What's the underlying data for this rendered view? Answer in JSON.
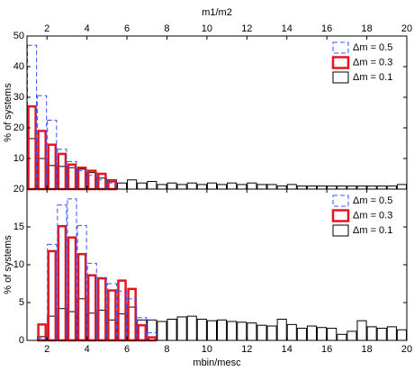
{
  "chart_data": [
    {
      "type": "histogram",
      "xlabel": "m1/m2",
      "xaxis_side": "top",
      "ylabel": "% of systems",
      "xlim": [
        1,
        20
      ],
      "xticks": [
        2,
        4,
        6,
        8,
        10,
        12,
        14,
        16,
        18,
        20
      ],
      "ylim": [
        0,
        50
      ],
      "yticks": [
        10,
        20,
        30,
        40,
        50
      ],
      "legend": "upper right",
      "bins": [
        1,
        1.5,
        2,
        2.5,
        3,
        3.5,
        4,
        4.5,
        5,
        5.5,
        6,
        6.5,
        7,
        7.5,
        8,
        8.5,
        9,
        9.5,
        10,
        10.5,
        11,
        11.5,
        12,
        12.5,
        13,
        13.5,
        14,
        14.5,
        15,
        15.5,
        16,
        16.5,
        17,
        17.5,
        18,
        18.5,
        19,
        19.5,
        20
      ],
      "series": [
        {
          "name": "Δm = 0.5",
          "color": "#3355ff",
          "style": "dashed",
          "values": [
            47,
            30.5,
            22.5,
            13,
            9,
            6,
            4.5,
            3,
            2,
            null,
            null,
            null,
            null,
            null,
            null,
            null,
            null,
            null,
            null,
            null,
            null,
            null,
            null,
            null,
            null,
            null,
            null,
            null,
            null,
            null,
            null,
            null,
            null,
            null,
            null,
            null,
            null,
            null
          ]
        },
        {
          "name": "Δm = 0.3",
          "color": "#e8141b",
          "style": "thick",
          "values": [
            27,
            19,
            14.5,
            11.5,
            8,
            7,
            6,
            5,
            2.5,
            null,
            null,
            null,
            null,
            null,
            null,
            null,
            null,
            null,
            null,
            null,
            null,
            null,
            null,
            null,
            null,
            null,
            null,
            null,
            null,
            null,
            null,
            null,
            null,
            null,
            null,
            null,
            null,
            null
          ]
        },
        {
          "name": "Δm = 0.1",
          "color": "#000000",
          "style": "solid",
          "values": [
            16.5,
            10,
            7.7,
            7.4,
            7,
            6.5,
            5.4,
            3.6,
            3,
            2,
            3,
            2,
            2.5,
            1.5,
            2,
            1.5,
            2,
            1.5,
            2,
            1.5,
            2,
            1.5,
            2,
            1.5,
            1.5,
            1,
            1.5,
            1,
            1,
            1,
            1,
            1,
            1,
            1,
            1,
            1,
            1,
            1.5
          ]
        }
      ]
    },
    {
      "type": "histogram",
      "xlabel": "mbin/mesc",
      "xaxis_side": "bottom",
      "ylabel": "% of systems",
      "xlim": [
        1,
        20
      ],
      "xticks": [
        2,
        4,
        6,
        8,
        10,
        12,
        14,
        16,
        18,
        20
      ],
      "ylim": [
        0,
        20
      ],
      "yticks": [
        0,
        5,
        10,
        15,
        20
      ],
      "legend": "upper right",
      "bins": [
        1,
        1.5,
        2,
        2.5,
        3,
        3.5,
        4,
        4.5,
        5,
        5.5,
        6,
        6.5,
        7,
        7.5,
        8,
        8.5,
        9,
        9.5,
        10,
        10.5,
        11,
        11.5,
        12,
        12.5,
        13,
        13.5,
        14,
        14.5,
        15,
        15.5,
        16,
        16.5,
        17,
        17.5,
        18,
        18.5,
        19,
        19.5,
        20
      ],
      "series": [
        {
          "name": "Δm = 0.5",
          "color": "#3355ff",
          "style": "dashed",
          "values": [
            null,
            0.3,
            12.7,
            17.9,
            18.7,
            15.2,
            10.2,
            8.3,
            7.5,
            6.5,
            5.5,
            3,
            1,
            null,
            null,
            null,
            null,
            null,
            null,
            null,
            null,
            null,
            null,
            null,
            null,
            null,
            null,
            null,
            null,
            null,
            null,
            null,
            null,
            null,
            null,
            null,
            null,
            null
          ]
        },
        {
          "name": "Δm = 0.3",
          "color": "#e8141b",
          "style": "thick",
          "values": [
            null,
            2.1,
            11.8,
            15.1,
            13.6,
            11.4,
            8.6,
            8.2,
            6.6,
            7.9,
            6.8,
            2,
            0.4,
            null,
            null,
            null,
            null,
            null,
            null,
            null,
            null,
            null,
            null,
            null,
            null,
            null,
            null,
            null,
            null,
            null,
            null,
            null,
            null,
            null,
            null,
            null,
            null,
            null
          ]
        },
        {
          "name": "Δm = 0.1",
          "color": "#000000",
          "style": "solid",
          "values": [
            0,
            0.5,
            3.2,
            4.2,
            3.8,
            5.5,
            3.6,
            4,
            2.7,
            3.5,
            4.4,
            2.7,
            2.7,
            2.5,
            2.8,
            3.1,
            3.2,
            2.8,
            2.6,
            2.7,
            2.5,
            2.4,
            2.3,
            2,
            1.9,
            2.8,
            2.1,
            1.6,
            1.9,
            1.7,
            1.6,
            0.8,
            1.2,
            2.6,
            1.8,
            1.6,
            1.8,
            1.4
          ]
        }
      ]
    }
  ]
}
